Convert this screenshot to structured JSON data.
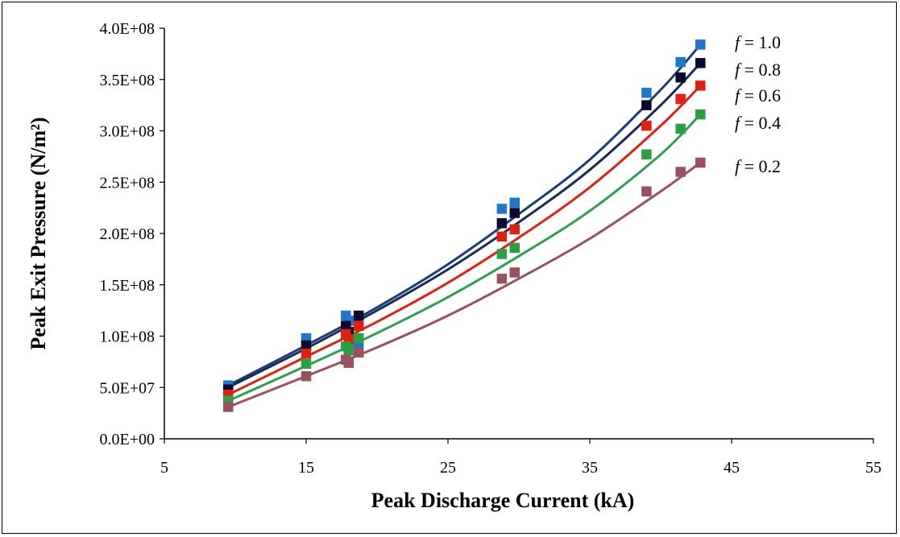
{
  "chart_data": {
    "type": "scatter",
    "xlabel": "Peak Discharge Current (kA)",
    "ylabel": "Peak Exit Pressure  (N/m²)",
    "xlim": [
      5,
      55
    ],
    "ylim": [
      0,
      400000000
    ],
    "x_ticks": [
      5,
      15,
      25,
      35,
      45,
      55
    ],
    "x_tick_labels": [
      "5",
      "15",
      "25",
      "35",
      "45",
      "55"
    ],
    "y_ticks": [
      0,
      50000000,
      100000000,
      150000000,
      200000000,
      250000000,
      300000000,
      350000000,
      400000000
    ],
    "y_tick_labels": [
      "0.0E+00",
      "5.0E+07",
      "1.0E+08",
      "1.5E+08",
      "2.0E+08",
      "2.5E+08",
      "3.0E+08",
      "3.5E+08",
      "4.0E+08"
    ],
    "grid": false,
    "legend_position": "right",
    "series": [
      {
        "name": "f = 1.0",
        "f_value": "1.0",
        "color": "#1f77c8",
        "line_color": "#1a3d7a",
        "points": [
          [
            9.5,
            52000000
          ],
          [
            15,
            98000000
          ],
          [
            17.8,
            120000000
          ],
          [
            18,
            115000000
          ],
          [
            18.7,
            93000000
          ],
          [
            28.8,
            224000000
          ],
          [
            29.7,
            230000000
          ],
          [
            39,
            337000000
          ],
          [
            41.4,
            367000000
          ],
          [
            42.8,
            384000000
          ]
        ],
        "fit": [
          [
            9.5,
            52000000
          ],
          [
            15,
            91000000
          ],
          [
            20,
            128000000
          ],
          [
            25,
            170000000
          ],
          [
            30,
            219000000
          ],
          [
            35,
            272000000
          ],
          [
            40,
            340000000
          ],
          [
            42.8,
            384000000
          ]
        ]
      },
      {
        "name": "f = 0.8",
        "f_value": "0.8",
        "color": "#0a0a30",
        "line_color": "#1a2a5a",
        "points": [
          [
            9.5,
            48000000
          ],
          [
            15,
            91000000
          ],
          [
            17.8,
            110000000
          ],
          [
            18,
            104000000
          ],
          [
            18.7,
            120000000
          ],
          [
            28.8,
            210000000
          ],
          [
            29.7,
            220000000
          ],
          [
            39,
            325000000
          ],
          [
            41.4,
            352000000
          ],
          [
            42.8,
            366000000
          ]
        ],
        "fit": [
          [
            9.5,
            50000000
          ],
          [
            15,
            88000000
          ],
          [
            20,
            125000000
          ],
          [
            25,
            165000000
          ],
          [
            30,
            211000000
          ],
          [
            35,
            262000000
          ],
          [
            40,
            325000000
          ],
          [
            42.8,
            366000000
          ]
        ]
      },
      {
        "name": "f = 0.6",
        "f_value": "0.6",
        "color": "#e02010",
        "line_color": "#e02010",
        "points": [
          [
            9.5,
            43000000
          ],
          [
            15,
            83000000
          ],
          [
            17.8,
            102000000
          ],
          [
            18,
            97000000
          ],
          [
            18.7,
            110000000
          ],
          [
            28.8,
            197000000
          ],
          [
            29.7,
            204000000
          ],
          [
            39,
            305000000
          ],
          [
            41.4,
            331000000
          ],
          [
            42.8,
            344000000
          ]
        ],
        "fit": [
          [
            9.5,
            43000000
          ],
          [
            15,
            80000000
          ],
          [
            20,
            114000000
          ],
          [
            25,
            152000000
          ],
          [
            30,
            196000000
          ],
          [
            35,
            245000000
          ],
          [
            40,
            305000000
          ],
          [
            42.8,
            344000000
          ]
        ]
      },
      {
        "name": "f = 0.4",
        "f_value": "0.4",
        "color": "#2ca040",
        "line_color": "#2ca050",
        "points": [
          [
            9.5,
            37000000
          ],
          [
            15,
            73000000
          ],
          [
            17.8,
            90000000
          ],
          [
            18,
            86000000
          ],
          [
            18.7,
            98000000
          ],
          [
            28.8,
            180000000
          ],
          [
            29.7,
            186000000
          ],
          [
            39,
            277000000
          ],
          [
            41.4,
            302000000
          ],
          [
            42.8,
            316000000
          ]
        ],
        "fit": [
          [
            9.5,
            37000000
          ],
          [
            15,
            71000000
          ],
          [
            20,
            103000000
          ],
          [
            25,
            138000000
          ],
          [
            30,
            178000000
          ],
          [
            35,
            222000000
          ],
          [
            40,
            277000000
          ],
          [
            42.8,
            316000000
          ]
        ]
      },
      {
        "name": "f = 0.2",
        "f_value": "0.2",
        "color": "#9a5060",
        "line_color": "#9a5060",
        "points": [
          [
            9.5,
            31000000
          ],
          [
            15,
            61000000
          ],
          [
            17.8,
            77000000
          ],
          [
            18,
            74000000
          ],
          [
            18.7,
            84000000
          ],
          [
            28.8,
            156000000
          ],
          [
            29.7,
            162000000
          ],
          [
            39,
            241000000
          ],
          [
            41.4,
            260000000
          ],
          [
            42.8,
            269000000
          ]
        ],
        "fit": [
          [
            9.5,
            31000000
          ],
          [
            15,
            61000000
          ],
          [
            20,
            89000000
          ],
          [
            25,
            120000000
          ],
          [
            30,
            156000000
          ],
          [
            35,
            195000000
          ],
          [
            40,
            241000000
          ],
          [
            42.8,
            269000000
          ]
        ]
      }
    ]
  }
}
